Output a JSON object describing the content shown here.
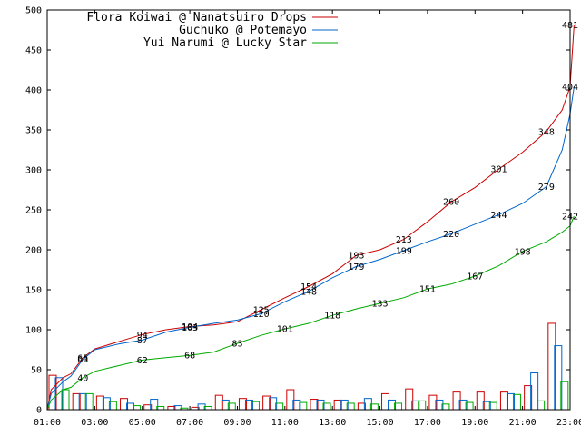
{
  "chart_data": {
    "type": "line",
    "title": "",
    "xlabel": "",
    "ylabel": "",
    "ylim": [
      0,
      500
    ],
    "xlim": [
      "01:00",
      "23:00"
    ],
    "yticks": [
      0,
      50,
      100,
      150,
      200,
      250,
      300,
      350,
      400,
      450,
      500
    ],
    "xticks": [
      "01:00",
      "03:00",
      "05:00",
      "07:00",
      "09:00",
      "11:00",
      "13:00",
      "15:00",
      "17:00",
      "19:00",
      "21:00",
      "23:00"
    ],
    "grid": false,
    "legend_position": "top-right",
    "series": [
      {
        "name": "Flora Koiwai @ Nanatsuiro Drops",
        "color": "#cc0000",
        "points": [
          [
            "01:00",
            0
          ],
          [
            "01:10",
            25
          ],
          [
            "01:40",
            40
          ],
          [
            "02:00",
            45
          ],
          [
            "02:30",
            65
          ],
          [
            "03:00",
            76
          ],
          [
            "04:00",
            85
          ],
          [
            "05:00",
            94
          ],
          [
            "06:00",
            100
          ],
          [
            "07:00",
            104
          ],
          [
            "08:00",
            106
          ],
          [
            "09:00",
            110
          ],
          [
            "10:00",
            125
          ],
          [
            "11:00",
            140
          ],
          [
            "12:00",
            154
          ],
          [
            "13:00",
            170
          ],
          [
            "14:00",
            193
          ],
          [
            "15:00",
            200
          ],
          [
            "16:00",
            213
          ],
          [
            "17:00",
            235
          ],
          [
            "18:00",
            260
          ],
          [
            "19:00",
            278
          ],
          [
            "20:00",
            301
          ],
          [
            "21:00",
            322
          ],
          [
            "22:00",
            348
          ],
          [
            "22:40",
            375
          ],
          [
            "23:00",
            404
          ],
          [
            "23:10",
            481
          ]
        ],
        "labels": [
          [
            "02:30",
            65,
            "65"
          ],
          [
            "05:00",
            94,
            "94"
          ],
          [
            "07:00",
            104,
            "104"
          ],
          [
            "10:00",
            125,
            "125"
          ],
          [
            "12:00",
            154,
            "154"
          ],
          [
            "14:00",
            193,
            "193"
          ],
          [
            "16:00",
            213,
            "213"
          ],
          [
            "18:00",
            260,
            "260"
          ],
          [
            "20:00",
            301,
            "301"
          ],
          [
            "22:00",
            348,
            "348"
          ],
          [
            "23:00",
            481,
            "481"
          ]
        ]
      },
      {
        "name": "Guchuko @ Potemayo",
        "color": "#0066cc",
        "points": [
          [
            "01:00",
            0
          ],
          [
            "01:10",
            20
          ],
          [
            "01:40",
            35
          ],
          [
            "02:00",
            42
          ],
          [
            "02:30",
            63
          ],
          [
            "03:00",
            75
          ],
          [
            "04:00",
            82
          ],
          [
            "05:00",
            87
          ],
          [
            "06:00",
            97
          ],
          [
            "07:00",
            103
          ],
          [
            "08:00",
            108
          ],
          [
            "09:00",
            112
          ],
          [
            "10:00",
            120
          ],
          [
            "11:00",
            135
          ],
          [
            "12:00",
            148
          ],
          [
            "13:00",
            165
          ],
          [
            "14:00",
            179
          ],
          [
            "15:00",
            188
          ],
          [
            "16:00",
            199
          ],
          [
            "17:00",
            210
          ],
          [
            "18:00",
            220
          ],
          [
            "19:00",
            232
          ],
          [
            "20:00",
            244
          ],
          [
            "21:00",
            258
          ],
          [
            "22:00",
            279
          ],
          [
            "22:40",
            325
          ],
          [
            "23:00",
            370
          ],
          [
            "23:10",
            404
          ]
        ],
        "labels": [
          [
            "02:30",
            63,
            "63"
          ],
          [
            "05:00",
            87,
            "87"
          ],
          [
            "07:00",
            103,
            "103"
          ],
          [
            "10:00",
            120,
            "120"
          ],
          [
            "12:00",
            148,
            "148"
          ],
          [
            "14:00",
            179,
            "179"
          ],
          [
            "16:00",
            199,
            "199"
          ],
          [
            "18:00",
            220,
            "220"
          ],
          [
            "20:00",
            244,
            "244"
          ],
          [
            "22:00",
            279,
            "279"
          ],
          [
            "23:00",
            404,
            "404"
          ]
        ]
      },
      {
        "name": "Yui Narumi @ Lucky Star",
        "color": "#00aa00",
        "points": [
          [
            "01:00",
            0
          ],
          [
            "01:10",
            12
          ],
          [
            "01:40",
            25
          ],
          [
            "02:00",
            28
          ],
          [
            "02:30",
            40
          ],
          [
            "03:00",
            48
          ],
          [
            "04:00",
            55
          ],
          [
            "05:00",
            62
          ],
          [
            "06:00",
            65
          ],
          [
            "07:00",
            68
          ],
          [
            "08:00",
            72
          ],
          [
            "09:00",
            83
          ],
          [
            "10:00",
            93
          ],
          [
            "11:00",
            101
          ],
          [
            "12:00",
            108
          ],
          [
            "13:00",
            118
          ],
          [
            "14:00",
            126
          ],
          [
            "15:00",
            133
          ],
          [
            "16:00",
            140
          ],
          [
            "17:00",
            151
          ],
          [
            "18:00",
            157
          ],
          [
            "19:00",
            167
          ],
          [
            "20:00",
            180
          ],
          [
            "21:00",
            198
          ],
          [
            "22:00",
            210
          ],
          [
            "22:40",
            222
          ],
          [
            "23:00",
            230
          ],
          [
            "23:10",
            242
          ]
        ],
        "labels": [
          [
            "02:30",
            40,
            "40"
          ],
          [
            "05:00",
            62,
            "62"
          ],
          [
            "07:00",
            68,
            "68"
          ],
          [
            "09:00",
            83,
            "83"
          ],
          [
            "11:00",
            101,
            "101"
          ],
          [
            "13:00",
            118,
            "118"
          ],
          [
            "15:00",
            133,
            "133"
          ],
          [
            "17:00",
            151,
            "151"
          ],
          [
            "19:00",
            167,
            "167"
          ],
          [
            "21:00",
            198,
            "198"
          ],
          [
            "23:00",
            242,
            "242"
          ]
        ]
      }
    ],
    "hourly_bars": {
      "type": "bar",
      "hours": [
        "01:00",
        "02:00",
        "03:00",
        "04:00",
        "05:00",
        "06:00",
        "07:00",
        "08:00",
        "09:00",
        "10:00",
        "11:00",
        "12:00",
        "13:00",
        "14:00",
        "15:00",
        "16:00",
        "17:00",
        "18:00",
        "19:00",
        "20:00",
        "21:00",
        "22:00"
      ],
      "series": [
        {
          "name": "Flora Koiwai @ Nanatsuiro Drops",
          "color": "#cc0000",
          "values": [
            43,
            20,
            17,
            14,
            6,
            4,
            3,
            18,
            14,
            17,
            25,
            13,
            12,
            8,
            20,
            26,
            18,
            22,
            22,
            22,
            30,
            108
          ]
        },
        {
          "name": "Guchuko @ Potemayo",
          "color": "#0066cc",
          "values": [
            40,
            20,
            15,
            8,
            13,
            5,
            7,
            12,
            12,
            15,
            12,
            12,
            12,
            14,
            12,
            11,
            12,
            12,
            10,
            20,
            46,
            80
          ]
        },
        {
          "name": "Yui Narumi @ Lucky Star",
          "color": "#00aa00",
          "values": [
            25,
            20,
            10,
            5,
            4,
            2,
            4,
            8,
            10,
            8,
            9,
            8,
            8,
            7,
            8,
            11,
            7,
            9,
            9,
            19,
            11,
            35
          ]
        }
      ]
    }
  }
}
